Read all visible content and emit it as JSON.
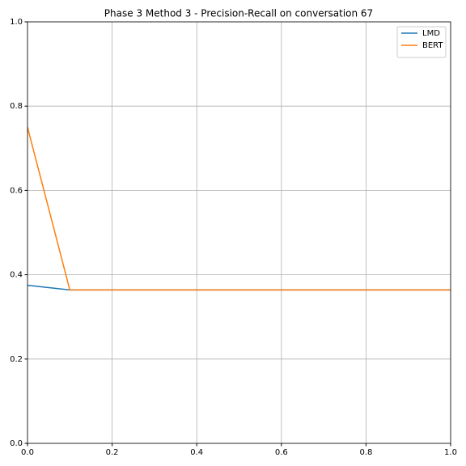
{
  "chart_data": {
    "type": "line",
    "title": "Phase 3 Method 3 - Precision-Recall on conversation 67",
    "x": [
      0,
      0.1,
      1
    ],
    "series": [
      {
        "name": "LMD",
        "color": "#1f77b4",
        "values": [
          0.375,
          0.364,
          0.364
        ]
      },
      {
        "name": "BERT",
        "color": "#ff7f0e",
        "values": [
          0.75,
          0.364,
          0.364
        ]
      }
    ],
    "xlim": [
      0,
      1
    ],
    "ylim": [
      0,
      1
    ],
    "xticks": [
      {
        "value": 0,
        "label": "0.0"
      },
      0.2,
      0.4,
      0.6,
      0.8,
      {
        "value": 1,
        "label": "1.0"
      }
    ],
    "yticks": [
      {
        "value": 0,
        "label": "0.0"
      },
      0.2,
      0.4,
      0.6,
      0.8,
      {
        "value": 1,
        "label": "1.0"
      }
    ],
    "grid": true,
    "legend": "upper right"
  }
}
